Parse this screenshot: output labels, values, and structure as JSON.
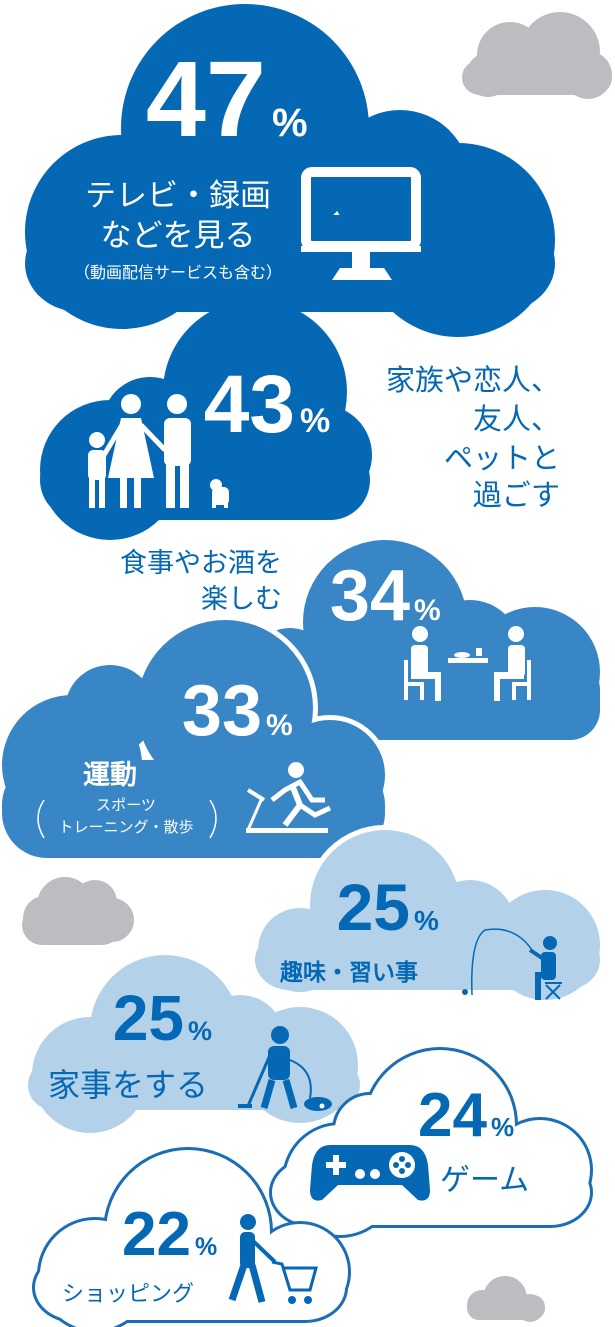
{
  "colors": {
    "dark_blue": "#0568b4",
    "mid_blue": "#3886c6",
    "light_blue": "#b3d2ea",
    "outline_blue": "#1b6db6",
    "gray": "#bdbdc1",
    "white": "#ffffff"
  },
  "items": [
    {
      "value": "47",
      "unit": "%",
      "label_lines": [
        "テレビ・録画",
        "などを見る"
      ],
      "note": "（動画配信サービスも含む）",
      "icon": "monitor-icon"
    },
    {
      "value": "43",
      "unit": "%",
      "label_lines": [
        "家族や恋人、",
        "友人、",
        "ペットと",
        "過ごす"
      ],
      "icon": "family-with-dog-icon"
    },
    {
      "value": "34",
      "unit": "%",
      "label_lines": [
        "食事やお酒を",
        "楽しむ"
      ],
      "icon": "dining-icon"
    },
    {
      "value": "33",
      "unit": "%",
      "label": "運動",
      "note_lines": [
        "スポーツ",
        "トレーニング・散歩"
      ],
      "icon": "treadmill-runner-icon"
    },
    {
      "value": "25",
      "unit": "%",
      "label": "趣味・習い事",
      "icon": "fishing-icon"
    },
    {
      "value": "25",
      "unit": "%",
      "label": "家事をする",
      "icon": "vacuum-cleaner-icon"
    },
    {
      "value": "24",
      "unit": "%",
      "label": "ゲーム",
      "icon": "game-controller-icon"
    },
    {
      "value": "22",
      "unit": "%",
      "label": "ショッピング",
      "icon": "shopping-cart-icon"
    }
  ]
}
